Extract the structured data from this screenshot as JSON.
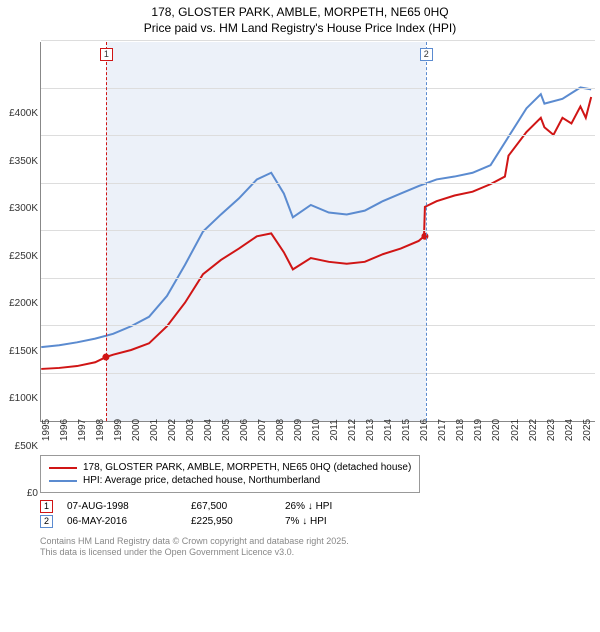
{
  "title_line1": "178, GLOSTER PARK, AMBLE, MORPETH, NE65 0HQ",
  "title_line2": "Price paid vs. HM Land Registry's House Price Index (HPI)",
  "chart": {
    "type": "line",
    "background_color": "#ffffff",
    "grid_color": "#dddddd",
    "axis_color": "#888888",
    "xlim": [
      1995,
      2025.8
    ],
    "ylim": [
      0,
      400000
    ],
    "ytick_step": 50000,
    "ytick_labels": [
      "£0",
      "£50K",
      "£100K",
      "£150K",
      "£200K",
      "£250K",
      "£300K",
      "£350K",
      "£400K"
    ],
    "xtick_years": [
      1995,
      1996,
      1997,
      1998,
      1999,
      2000,
      2001,
      2002,
      2003,
      2004,
      2005,
      2006,
      2007,
      2008,
      2009,
      2010,
      2011,
      2012,
      2013,
      2014,
      2015,
      2016,
      2017,
      2018,
      2019,
      2020,
      2021,
      2022,
      2023,
      2024,
      2025
    ],
    "shade_range": [
      1998.6,
      2016.35
    ],
    "shade_color": "rgba(180,200,230,0.25)",
    "markers": [
      {
        "label": "1",
        "x": 1998.6,
        "color": "#d01515"
      },
      {
        "label": "2",
        "x": 2016.35,
        "color": "#5b8bd0"
      }
    ],
    "series": [
      {
        "name": "price_paid",
        "color": "#d01515",
        "width": 2,
        "legend": "178, GLOSTER PARK, AMBLE, MORPETH, NE65 0HQ (detached house)",
        "points": [
          [
            1995,
            55000
          ],
          [
            1996,
            56000
          ],
          [
            1997,
            58000
          ],
          [
            1998,
            62000
          ],
          [
            1998.6,
            67500
          ],
          [
            1999,
            70000
          ],
          [
            2000,
            75000
          ],
          [
            2001,
            82000
          ],
          [
            2002,
            100000
          ],
          [
            2003,
            125000
          ],
          [
            2004,
            155000
          ],
          [
            2005,
            170000
          ],
          [
            2006,
            182000
          ],
          [
            2007,
            195000
          ],
          [
            2007.8,
            198000
          ],
          [
            2008.5,
            178000
          ],
          [
            2009,
            160000
          ],
          [
            2010,
            172000
          ],
          [
            2011,
            168000
          ],
          [
            2012,
            166000
          ],
          [
            2013,
            168000
          ],
          [
            2014,
            176000
          ],
          [
            2015,
            182000
          ],
          [
            2016,
            190000
          ],
          [
            2016.3,
            195000
          ],
          [
            2016.35,
            225950
          ],
          [
            2017,
            232000
          ],
          [
            2018,
            238000
          ],
          [
            2019,
            242000
          ],
          [
            2020,
            250000
          ],
          [
            2020.8,
            258000
          ],
          [
            2021,
            280000
          ],
          [
            2022,
            305000
          ],
          [
            2022.8,
            320000
          ],
          [
            2023,
            310000
          ],
          [
            2023.5,
            302000
          ],
          [
            2024,
            320000
          ],
          [
            2024.5,
            314000
          ],
          [
            2025,
            332000
          ],
          [
            2025.3,
            320000
          ],
          [
            2025.6,
            342000
          ]
        ]
      },
      {
        "name": "hpi",
        "color": "#5b8bd0",
        "width": 2,
        "legend": "HPI: Average price, detached house, Northumberland",
        "points": [
          [
            1995,
            78000
          ],
          [
            1996,
            80000
          ],
          [
            1997,
            83000
          ],
          [
            1998,
            87000
          ],
          [
            1999,
            92000
          ],
          [
            2000,
            100000
          ],
          [
            2001,
            110000
          ],
          [
            2002,
            132000
          ],
          [
            2003,
            165000
          ],
          [
            2004,
            200000
          ],
          [
            2005,
            218000
          ],
          [
            2006,
            235000
          ],
          [
            2007,
            255000
          ],
          [
            2007.8,
            262000
          ],
          [
            2008.5,
            240000
          ],
          [
            2009,
            215000
          ],
          [
            2010,
            228000
          ],
          [
            2011,
            220000
          ],
          [
            2012,
            218000
          ],
          [
            2013,
            222000
          ],
          [
            2014,
            232000
          ],
          [
            2015,
            240000
          ],
          [
            2016,
            248000
          ],
          [
            2017,
            255000
          ],
          [
            2018,
            258000
          ],
          [
            2019,
            262000
          ],
          [
            2020,
            270000
          ],
          [
            2021,
            300000
          ],
          [
            2022,
            330000
          ],
          [
            2022.8,
            345000
          ],
          [
            2023,
            335000
          ],
          [
            2024,
            340000
          ],
          [
            2025,
            352000
          ],
          [
            2025.6,
            350000
          ]
        ]
      }
    ]
  },
  "transactions": [
    {
      "n": "1",
      "color": "#d01515",
      "date": "07-AUG-1998",
      "price": "£67,500",
      "diff": "26% ↓ HPI"
    },
    {
      "n": "2",
      "color": "#5b8bd0",
      "date": "06-MAY-2016",
      "price": "£225,950",
      "diff": "7% ↓ HPI"
    }
  ],
  "copyright_line1": "Contains HM Land Registry data © Crown copyright and database right 2025.",
  "copyright_line2": "This data is licensed under the Open Government Licence v3.0."
}
